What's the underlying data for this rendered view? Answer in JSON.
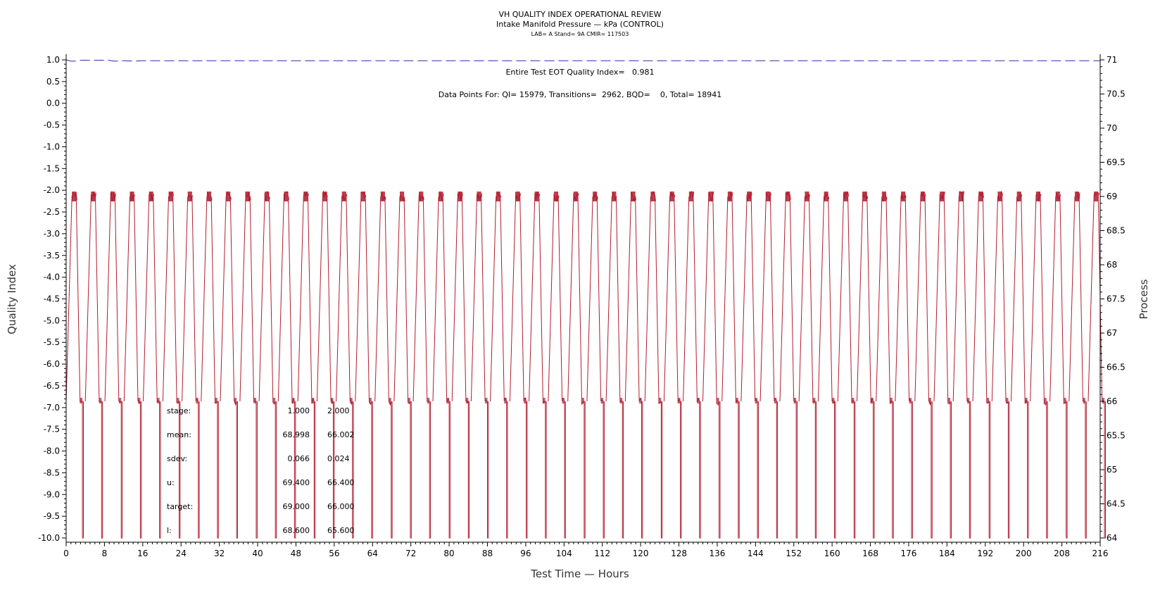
{
  "header": {
    "title": "VH QUALITY INDEX OPERATIONAL REVIEW",
    "subtitle": "Intake Manifold Pressure — kPa (CONTROL)",
    "info": "LAB= A Stand= 9A CMIR= 117503"
  },
  "annotations": {
    "eot": "Entire Test EOT Quality Index=   0.981",
    "points": "Data Points For: QI= 15979, Transitions=  2962, BQD=    0, Total= 18941"
  },
  "stats": {
    "rows": [
      {
        "label": "stage:",
        "v1": "1.000",
        "v2": "2.000"
      },
      {
        "label": "mean:",
        "v1": "68.998",
        "v2": "66.002"
      },
      {
        "label": "sdev:",
        "v1": "0.066",
        "v2": "0.024"
      },
      {
        "label": "u:",
        "v1": "69.400",
        "v2": "66.400"
      },
      {
        "label": "target:",
        "v1": "69.000",
        "v2": "66.000"
      },
      {
        "label": "l:",
        "v1": "68.600",
        "v2": "65.600"
      }
    ]
  },
  "colors": {
    "process": "#b01c2e",
    "qi": "#2a2aa8",
    "axis": "#000000"
  },
  "chart_data": {
    "type": "line",
    "xlabel": "Test Time — Hours",
    "ylabel": "Quality Index",
    "y2label": "Process",
    "xlim": [
      0,
      216
    ],
    "ylim": [
      -10.0,
      1.0
    ],
    "y2lim": [
      64,
      71
    ],
    "xticks": [
      0,
      8,
      16,
      24,
      32,
      40,
      48,
      56,
      64,
      72,
      80,
      88,
      96,
      104,
      112,
      120,
      128,
      136,
      144,
      152,
      160,
      168,
      176,
      184,
      192,
      200,
      208,
      216
    ],
    "yticks": [
      "1.0",
      "0.5",
      "0.0",
      "-0.5",
      "-1.0",
      "-1.5",
      "-2.0",
      "-2.5",
      "-3.0",
      "-3.5",
      "-4.0",
      "-4.5",
      "-5.0",
      "-5.5",
      "-6.0",
      "-6.5",
      "-7.0",
      "-7.5",
      "-8.0",
      "-8.5",
      "-9.0",
      "-9.5",
      "-10.0"
    ],
    "y2ticks": [
      "71",
      "70.5",
      "70",
      "69.5",
      "69",
      "68.5",
      "68",
      "67.5",
      "67",
      "66.5",
      "66",
      "65.5",
      "65",
      "64.5",
      "64"
    ],
    "series": [
      {
        "name": "QI",
        "style": "dashed",
        "x": [
          0,
          1,
          2,
          3,
          4,
          6,
          8,
          9,
          10,
          12,
          14,
          16,
          216
        ],
        "y": [
          1.0,
          0.97,
          0.97,
          0.99,
          0.99,
          0.99,
          0.99,
          0.99,
          0.97,
          0.98,
          0.97,
          0.98,
          0.98
        ]
      },
      {
        "name": "Process",
        "axis": "right",
        "cycle_starts": [
          0.0,
          4.0,
          8.1,
          12.1,
          16.1,
          20.2,
          24.2,
          28.2,
          32.2,
          36.3,
          40.3,
          44.3,
          48.4,
          52.4,
          56.4,
          60.4,
          64.5,
          68.5,
          72.5,
          76.6,
          80.6,
          84.6,
          88.6,
          92.7,
          96.7,
          100.7,
          104.8,
          108.8,
          112.8,
          116.8,
          120.9,
          124.9,
          128.9,
          133.0,
          137.0,
          141.0,
          145.0,
          149.1,
          153.1,
          157.1,
          161.2,
          165.2,
          169.2,
          173.2,
          177.3,
          181.3,
          185.3,
          189.4,
          193.4,
          197.4,
          201.4,
          205.5,
          209.5,
          213.5
        ],
        "cycle_hours": 4.03,
        "stage1_value": 69.0,
        "stage2_value": 66.0,
        "trough_value": 64.0
      }
    ]
  }
}
